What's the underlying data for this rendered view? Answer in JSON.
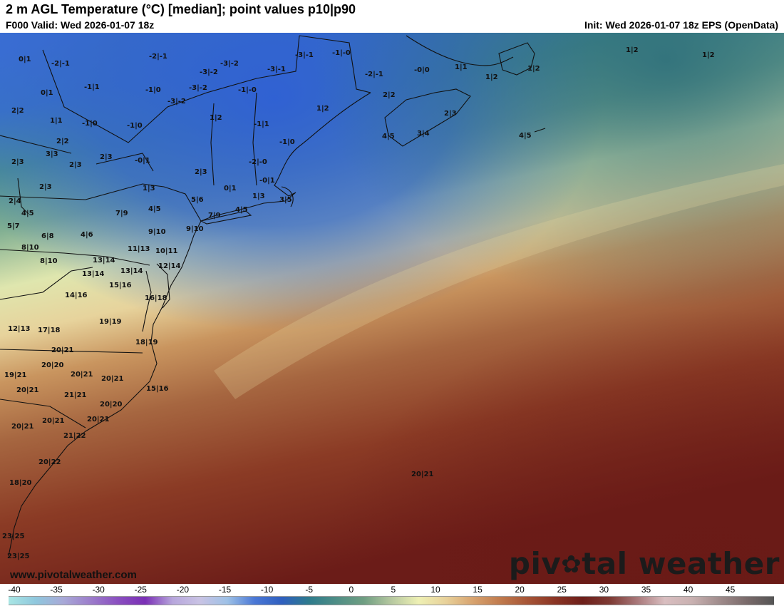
{
  "header": {
    "title": "2 m AGL Temperature (°C) [median]; point values p10|p90",
    "valid": "F000 Valid: Wed 2026-01-07 18z",
    "init": "Init: Wed 2026-01-07 18z EPS (OpenData)"
  },
  "footer": {
    "website": "www.pivotalweather.com",
    "logo_before": "piv",
    "logo_gear": "✿",
    "logo_after": "tal weather"
  },
  "legend": {
    "ticks": [
      "-40",
      "-35",
      "-30",
      "-25",
      "-20",
      "-15",
      "-10",
      "-5",
      "0",
      "5",
      "10",
      "15",
      "20",
      "25",
      "30",
      "35",
      "40",
      "45"
    ],
    "colors": [
      "#a9e6e4",
      "#8fc7dd",
      "#a8a9d7",
      "#9c7dcb",
      "#8a4fc0",
      "#7a2fb5",
      "#b7a6dc",
      "#c9c3e4",
      "#9ec1e6",
      "#4a78d6",
      "#2f5fbf",
      "#2e7b8c",
      "#4f8e86",
      "#6f9e82",
      "#b6c8a0",
      "#eef0b4",
      "#e8d19a",
      "#d7a26e",
      "#c07a4d",
      "#a65436",
      "#8a3424",
      "#6e1f1a",
      "#7e3a34",
      "#a9787a",
      "#d9bec0",
      "#c9b1b1",
      "#a08c8c",
      "#7a6a6a",
      "#555555"
    ]
  },
  "point_values": [
    {
      "label": "0|1"
    },
    {
      "label": "-2|-1"
    },
    {
      "label": "-2|-1"
    },
    {
      "label": "-3|-1"
    },
    {
      "label": "-1|-0"
    },
    {
      "label": "1|2"
    },
    {
      "label": "1|2"
    },
    {
      "label": "0|1"
    },
    {
      "label": "-1|1"
    },
    {
      "label": "-3|-2"
    },
    {
      "label": "-3|-2"
    },
    {
      "label": "-3|-1"
    },
    {
      "label": "-2|-1"
    },
    {
      "label": "-0|0"
    },
    {
      "label": "1|1"
    },
    {
      "label": "1|2"
    },
    {
      "label": "1|2"
    },
    {
      "label": "-1|0"
    },
    {
      "label": "-3|-2"
    },
    {
      "label": "-1|-0"
    },
    {
      "label": "2|2"
    },
    {
      "label": "2|2"
    },
    {
      "label": "1|1"
    },
    {
      "label": "-1|0"
    },
    {
      "label": "-1|0"
    },
    {
      "label": "-3|-2"
    },
    {
      "label": "1|2"
    },
    {
      "label": "1|2"
    },
    {
      "label": "2|3"
    },
    {
      "label": "-1|1"
    },
    {
      "label": "-1|0"
    },
    {
      "label": "4|5"
    },
    {
      "label": "3|4"
    },
    {
      "label": "4|5"
    },
    {
      "label": "2|2"
    },
    {
      "label": "3|3"
    },
    {
      "label": "2|3"
    },
    {
      "label": "2|3"
    },
    {
      "label": "2|3"
    },
    {
      "label": "-0|1"
    },
    {
      "label": "-2|-0"
    },
    {
      "label": "2|3"
    },
    {
      "label": "-0|1"
    },
    {
      "label": "2|3"
    },
    {
      "label": "1|3"
    },
    {
      "label": "0|1"
    },
    {
      "label": "1|3"
    },
    {
      "label": "2|4"
    },
    {
      "label": "5|6"
    },
    {
      "label": "3|5"
    },
    {
      "label": "4|5"
    },
    {
      "label": "4|5"
    },
    {
      "label": "7|9"
    },
    {
      "label": "7|9"
    },
    {
      "label": "4|5"
    },
    {
      "label": "5|7"
    },
    {
      "label": "9|10"
    },
    {
      "label": "9|10"
    },
    {
      "label": "6|8"
    },
    {
      "label": "4|6"
    },
    {
      "label": "8|10"
    },
    {
      "label": "11|13"
    },
    {
      "label": "10|11"
    },
    {
      "label": "8|10"
    },
    {
      "label": "13|14"
    },
    {
      "label": "12|14"
    },
    {
      "label": "13|14"
    },
    {
      "label": "13|14"
    },
    {
      "label": "15|16"
    },
    {
      "label": "14|16"
    },
    {
      "label": "16|18"
    },
    {
      "label": "19|19"
    },
    {
      "label": "12|13"
    },
    {
      "label": "17|18"
    },
    {
      "label": "18|19"
    },
    {
      "label": "20|21"
    },
    {
      "label": "20|20"
    },
    {
      "label": "19|21"
    },
    {
      "label": "20|21"
    },
    {
      "label": "20|21"
    },
    {
      "label": "20|21"
    },
    {
      "label": "15|16"
    },
    {
      "label": "21|21"
    },
    {
      "label": "20|20"
    },
    {
      "label": "20|21"
    },
    {
      "label": "20|21"
    },
    {
      "label": "20|21"
    },
    {
      "label": "21|22"
    },
    {
      "label": "20|22"
    },
    {
      "label": "18|20"
    },
    {
      "label": "20|21"
    },
    {
      "label": "23|25"
    },
    {
      "label": "23|25"
    }
  ]
}
